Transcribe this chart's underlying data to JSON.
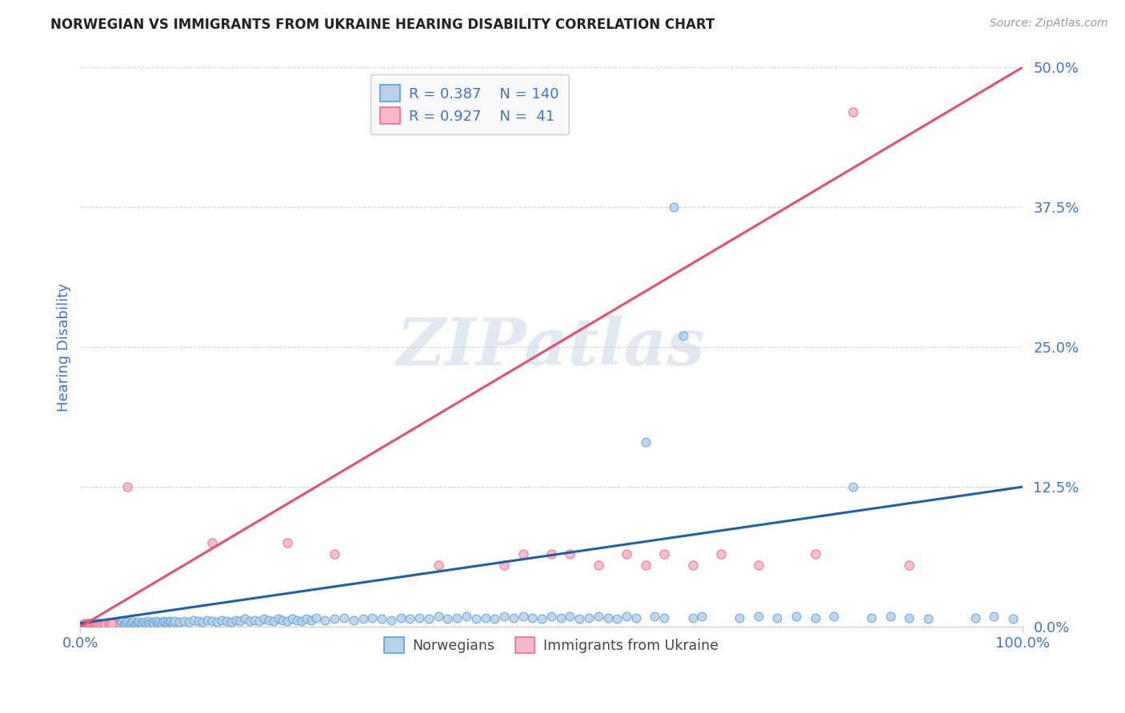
{
  "title": "NORWEGIAN VS IMMIGRANTS FROM UKRAINE HEARING DISABILITY CORRELATION CHART",
  "source": "Source: ZipAtlas.com",
  "ylabel": "Hearing Disability",
  "xmin": 0.0,
  "xmax": 1.0,
  "ymin": 0.0,
  "ymax": 0.5,
  "yticks": [
    0.0,
    0.125,
    0.25,
    0.375,
    0.5
  ],
  "ytick_labels": [
    "0.0%",
    "12.5%",
    "25.0%",
    "37.5%",
    "50.0%"
  ],
  "xticks": [
    0.0,
    1.0
  ],
  "xtick_labels": [
    "0.0%",
    "100.0%"
  ],
  "norwegian_fill_color": "#b8d0e8",
  "norwegian_edge_color": "#5a9fd4",
  "ukrainian_fill_color": "#f8b8c8",
  "ukrainian_edge_color": "#e87090",
  "norwegian_line_color": "#2060a0",
  "ukrainian_line_color": "#e05070",
  "R_norwegian": 0.387,
  "N_norwegian": 140,
  "R_ukrainian": 0.927,
  "N_ukrainian": 41,
  "text_color": "#4472c4",
  "watermark": "ZIPatlas",
  "background_color": "#ffffff",
  "nor_line_x0": 0.0,
  "nor_line_y0": 0.003,
  "nor_line_x1": 1.0,
  "nor_line_y1": 0.125,
  "ukr_line_x0": 0.0,
  "ukr_line_y0": 0.0,
  "ukr_line_x1": 1.0,
  "ukr_line_y1": 0.5,
  "norwegian_scatter": [
    [
      0.003,
      0.001
    ],
    [
      0.005,
      0.002
    ],
    [
      0.006,
      0.001
    ],
    [
      0.007,
      0.002
    ],
    [
      0.008,
      0.001
    ],
    [
      0.009,
      0.003
    ],
    [
      0.01,
      0.002
    ],
    [
      0.011,
      0.001
    ],
    [
      0.012,
      0.003
    ],
    [
      0.013,
      0.002
    ],
    [
      0.014,
      0.001
    ],
    [
      0.015,
      0.002
    ],
    [
      0.016,
      0.003
    ],
    [
      0.017,
      0.001
    ],
    [
      0.018,
      0.002
    ],
    [
      0.019,
      0.003
    ],
    [
      0.02,
      0.002
    ],
    [
      0.021,
      0.001
    ],
    [
      0.022,
      0.003
    ],
    [
      0.023,
      0.002
    ],
    [
      0.024,
      0.001
    ],
    [
      0.025,
      0.002
    ],
    [
      0.026,
      0.003
    ],
    [
      0.027,
      0.002
    ],
    [
      0.028,
      0.001
    ],
    [
      0.03,
      0.003
    ],
    [
      0.032,
      0.002
    ],
    [
      0.034,
      0.001
    ],
    [
      0.036,
      0.003
    ],
    [
      0.038,
      0.002
    ],
    [
      0.04,
      0.003
    ],
    [
      0.042,
      0.002
    ],
    [
      0.044,
      0.004
    ],
    [
      0.046,
      0.002
    ],
    [
      0.048,
      0.003
    ],
    [
      0.05,
      0.004
    ],
    [
      0.052,
      0.002
    ],
    [
      0.054,
      0.003
    ],
    [
      0.056,
      0.004
    ],
    [
      0.058,
      0.002
    ],
    [
      0.06,
      0.003
    ],
    [
      0.062,
      0.004
    ],
    [
      0.064,
      0.003
    ],
    [
      0.066,
      0.002
    ],
    [
      0.068,
      0.004
    ],
    [
      0.07,
      0.003
    ],
    [
      0.072,
      0.005
    ],
    [
      0.074,
      0.003
    ],
    [
      0.076,
      0.004
    ],
    [
      0.078,
      0.003
    ],
    [
      0.08,
      0.005
    ],
    [
      0.082,
      0.003
    ],
    [
      0.084,
      0.004
    ],
    [
      0.086,
      0.003
    ],
    [
      0.088,
      0.005
    ],
    [
      0.09,
      0.004
    ],
    [
      0.092,
      0.003
    ],
    [
      0.094,
      0.005
    ],
    [
      0.096,
      0.004
    ],
    [
      0.098,
      0.003
    ],
    [
      0.1,
      0.005
    ],
    [
      0.105,
      0.004
    ],
    [
      0.11,
      0.005
    ],
    [
      0.115,
      0.004
    ],
    [
      0.12,
      0.006
    ],
    [
      0.125,
      0.005
    ],
    [
      0.13,
      0.004
    ],
    [
      0.135,
      0.006
    ],
    [
      0.14,
      0.005
    ],
    [
      0.145,
      0.004
    ],
    [
      0.15,
      0.006
    ],
    [
      0.155,
      0.005
    ],
    [
      0.16,
      0.004
    ],
    [
      0.165,
      0.006
    ],
    [
      0.17,
      0.005
    ],
    [
      0.175,
      0.007
    ],
    [
      0.18,
      0.005
    ],
    [
      0.185,
      0.006
    ],
    [
      0.19,
      0.005
    ],
    [
      0.195,
      0.007
    ],
    [
      0.2,
      0.006
    ],
    [
      0.205,
      0.005
    ],
    [
      0.21,
      0.007
    ],
    [
      0.215,
      0.006
    ],
    [
      0.22,
      0.005
    ],
    [
      0.225,
      0.007
    ],
    [
      0.23,
      0.006
    ],
    [
      0.235,
      0.005
    ],
    [
      0.24,
      0.007
    ],
    [
      0.245,
      0.006
    ],
    [
      0.25,
      0.008
    ],
    [
      0.26,
      0.006
    ],
    [
      0.27,
      0.007
    ],
    [
      0.28,
      0.008
    ],
    [
      0.29,
      0.006
    ],
    [
      0.3,
      0.007
    ],
    [
      0.31,
      0.008
    ],
    [
      0.32,
      0.007
    ],
    [
      0.33,
      0.006
    ],
    [
      0.34,
      0.008
    ],
    [
      0.35,
      0.007
    ],
    [
      0.36,
      0.008
    ],
    [
      0.37,
      0.007
    ],
    [
      0.38,
      0.009
    ],
    [
      0.39,
      0.007
    ],
    [
      0.4,
      0.008
    ],
    [
      0.41,
      0.009
    ],
    [
      0.42,
      0.007
    ],
    [
      0.43,
      0.008
    ],
    [
      0.44,
      0.007
    ],
    [
      0.45,
      0.009
    ],
    [
      0.46,
      0.008
    ],
    [
      0.47,
      0.009
    ],
    [
      0.48,
      0.008
    ],
    [
      0.49,
      0.007
    ],
    [
      0.5,
      0.009
    ],
    [
      0.51,
      0.008
    ],
    [
      0.52,
      0.009
    ],
    [
      0.53,
      0.007
    ],
    [
      0.54,
      0.008
    ],
    [
      0.55,
      0.009
    ],
    [
      0.56,
      0.008
    ],
    [
      0.57,
      0.007
    ],
    [
      0.58,
      0.009
    ],
    [
      0.59,
      0.008
    ],
    [
      0.6,
      0.165
    ],
    [
      0.61,
      0.009
    ],
    [
      0.62,
      0.008
    ],
    [
      0.63,
      0.375
    ],
    [
      0.64,
      0.26
    ],
    [
      0.65,
      0.008
    ],
    [
      0.66,
      0.009
    ],
    [
      0.7,
      0.008
    ],
    [
      0.72,
      0.009
    ],
    [
      0.74,
      0.008
    ],
    [
      0.76,
      0.009
    ],
    [
      0.78,
      0.008
    ],
    [
      0.8,
      0.009
    ],
    [
      0.82,
      0.125
    ],
    [
      0.84,
      0.008
    ],
    [
      0.86,
      0.009
    ],
    [
      0.88,
      0.008
    ],
    [
      0.9,
      0.007
    ],
    [
      0.95,
      0.008
    ],
    [
      0.97,
      0.009
    ],
    [
      0.99,
      0.007
    ]
  ],
  "ukrainian_scatter": [
    [
      0.003,
      0.002
    ],
    [
      0.005,
      0.003
    ],
    [
      0.006,
      0.002
    ],
    [
      0.007,
      0.003
    ],
    [
      0.008,
      0.002
    ],
    [
      0.009,
      0.003
    ],
    [
      0.01,
      0.002
    ],
    [
      0.011,
      0.003
    ],
    [
      0.012,
      0.002
    ],
    [
      0.013,
      0.003
    ],
    [
      0.014,
      0.002
    ],
    [
      0.015,
      0.003
    ],
    [
      0.016,
      0.002
    ],
    [
      0.017,
      0.003
    ],
    [
      0.018,
      0.002
    ],
    [
      0.02,
      0.003
    ],
    [
      0.022,
      0.002
    ],
    [
      0.024,
      0.003
    ],
    [
      0.026,
      0.002
    ],
    [
      0.03,
      0.003
    ],
    [
      0.032,
      0.002
    ],
    [
      0.034,
      0.003
    ],
    [
      0.05,
      0.125
    ],
    [
      0.14,
      0.075
    ],
    [
      0.22,
      0.075
    ],
    [
      0.27,
      0.065
    ],
    [
      0.38,
      0.055
    ],
    [
      0.45,
      0.055
    ],
    [
      0.47,
      0.065
    ],
    [
      0.5,
      0.065
    ],
    [
      0.52,
      0.065
    ],
    [
      0.55,
      0.055
    ],
    [
      0.58,
      0.065
    ],
    [
      0.6,
      0.055
    ],
    [
      0.62,
      0.065
    ],
    [
      0.65,
      0.055
    ],
    [
      0.68,
      0.065
    ],
    [
      0.72,
      0.055
    ],
    [
      0.78,
      0.065
    ],
    [
      0.82,
      0.46
    ],
    [
      0.88,
      0.055
    ]
  ]
}
